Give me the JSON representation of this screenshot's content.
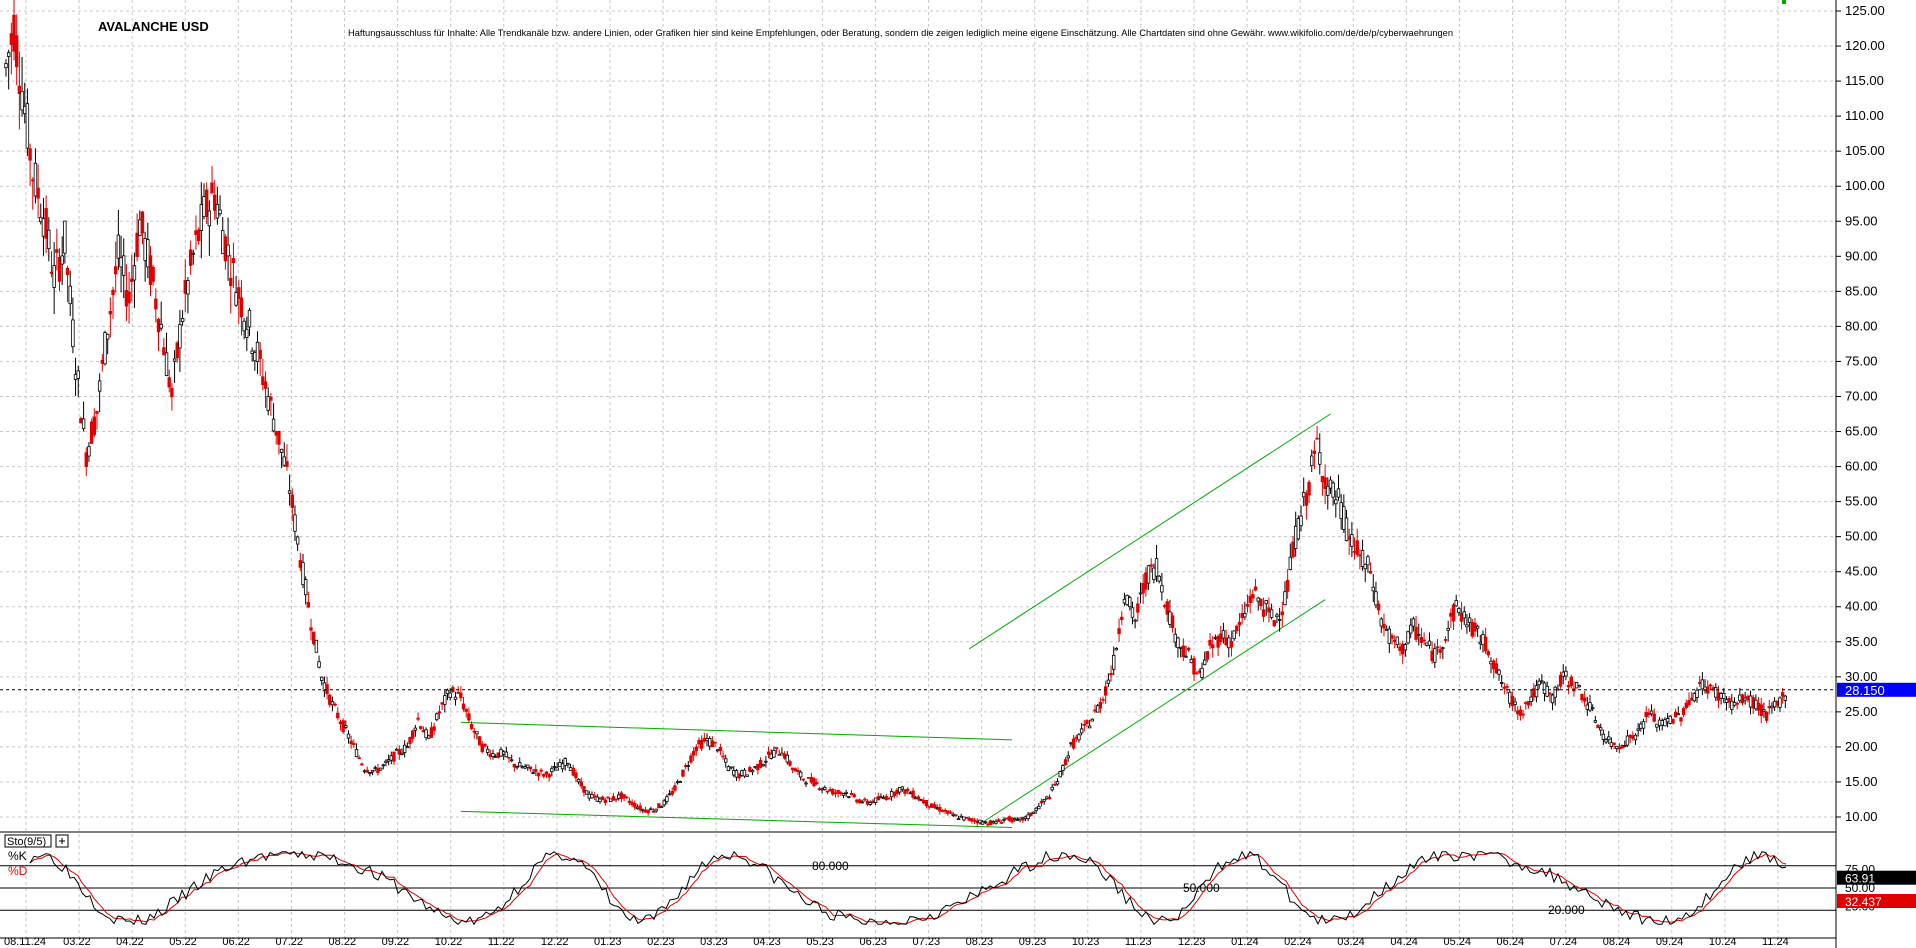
{
  "chart_data": {
    "type": "candlestick",
    "title": "AVALANCHE USD",
    "disclaimer": "Haftungsausschluss für Inhalte: Alle Trendkanäle bzw. andere Linien, oder Grafiken hier sind keine Empfehlungen, oder Beratung, sondern die zeigen lediglich meine eigene Einschätzung. Alle Chartdaten sind ohne Gewähr.  www.wikifolio.com/de/de/p/cyberwaehrungen",
    "y_ticks": [
      "125.00",
      "120.00",
      "115.00",
      "110.00",
      "105.00",
      "100.00",
      "95.00",
      "90.00",
      "85.00",
      "80.00",
      "75.00",
      "70.00",
      "65.00",
      "60.00",
      "55.00",
      "50.00",
      "45.00",
      "40.00",
      "35.00",
      "30.00",
      "25.00",
      "20.00",
      "15.00",
      "10.00"
    ],
    "ylim": [
      7,
      126
    ],
    "last_price": 28.15,
    "last_price_label": "28.150",
    "x_labels": [
      "08.11.24",
      "03.22",
      "04.22",
      "05.22",
      "06.22",
      "07.22",
      "08.22",
      "09.22",
      "10.22",
      "11.22",
      "12.22",
      "01.23",
      "02.23",
      "03.23",
      "04.23",
      "05.23",
      "06.23",
      "07.23",
      "08.23",
      "09.23",
      "10.23",
      "11.23",
      "12.23",
      "01.24",
      "02.24",
      "03.24",
      "04.24",
      "05.24",
      "06.24",
      "07.24",
      "08.24",
      "09.24",
      "10.24",
      "11.24"
    ],
    "price_path": [
      [
        0,
        117
      ],
      [
        3,
        123
      ],
      [
        6,
        114
      ],
      [
        10,
        102
      ],
      [
        14,
        96
      ],
      [
        18,
        87
      ],
      [
        22,
        92
      ],
      [
        26,
        75
      ],
      [
        30,
        62
      ],
      [
        34,
        68
      ],
      [
        38,
        80
      ],
      [
        42,
        90
      ],
      [
        46,
        84
      ],
      [
        50,
        95
      ],
      [
        54,
        88
      ],
      [
        58,
        80
      ],
      [
        62,
        70
      ],
      [
        66,
        82
      ],
      [
        70,
        90
      ],
      [
        74,
        96
      ],
      [
        78,
        99
      ],
      [
        82,
        92
      ],
      [
        86,
        86
      ],
      [
        90,
        81
      ],
      [
        94,
        76
      ],
      [
        98,
        70
      ],
      [
        102,
        64
      ],
      [
        106,
        57
      ],
      [
        110,
        47
      ],
      [
        114,
        38
      ],
      [
        118,
        30
      ],
      [
        122,
        26
      ],
      [
        126,
        23
      ],
      [
        130,
        20
      ],
      [
        134,
        17
      ],
      [
        138,
        16.5
      ],
      [
        142,
        17.5
      ],
      [
        146,
        19
      ],
      [
        150,
        20
      ],
      [
        154,
        24
      ],
      [
        158,
        21
      ],
      [
        162,
        25
      ],
      [
        166,
        28
      ],
      [
        170,
        27
      ],
      [
        174,
        23
      ],
      [
        178,
        20
      ],
      [
        182,
        19
      ],
      [
        186,
        19
      ],
      [
        190,
        17.5
      ],
      [
        194,
        17
      ],
      [
        198,
        16.5
      ],
      [
        202,
        16
      ],
      [
        206,
        17
      ],
      [
        210,
        18
      ],
      [
        214,
        15
      ],
      [
        218,
        13
      ],
      [
        222,
        12.5
      ],
      [
        226,
        12.5
      ],
      [
        230,
        13
      ],
      [
        234,
        12
      ],
      [
        238,
        11
      ],
      [
        242,
        11
      ],
      [
        246,
        12
      ],
      [
        250,
        14
      ],
      [
        254,
        17
      ],
      [
        258,
        20
      ],
      [
        262,
        21
      ],
      [
        266,
        20
      ],
      [
        270,
        17
      ],
      [
        274,
        16
      ],
      [
        278,
        16.5
      ],
      [
        282,
        17.5
      ],
      [
        286,
        19
      ],
      [
        290,
        19.5
      ],
      [
        294,
        17
      ],
      [
        298,
        15.5
      ],
      [
        302,
        15
      ],
      [
        306,
        14
      ],
      [
        310,
        13.5
      ],
      [
        314,
        13.5
      ],
      [
        318,
        12.5
      ],
      [
        322,
        12
      ],
      [
        326,
        12.5
      ],
      [
        330,
        13
      ],
      [
        334,
        14
      ],
      [
        338,
        13.5
      ],
      [
        342,
        12.5
      ],
      [
        346,
        11.5
      ],
      [
        350,
        11
      ],
      [
        354,
        10.2
      ],
      [
        358,
        9.8
      ],
      [
        362,
        9.5
      ],
      [
        366,
        9.2
      ],
      [
        370,
        9.2
      ],
      [
        374,
        9.8
      ],
      [
        378,
        9.4
      ],
      [
        382,
        10
      ],
      [
        386,
        11.5
      ],
      [
        390,
        13
      ],
      [
        394,
        16
      ],
      [
        398,
        20
      ],
      [
        402,
        22
      ],
      [
        406,
        24
      ],
      [
        410,
        27
      ],
      [
        414,
        32
      ],
      [
        418,
        42
      ],
      [
        422,
        38
      ],
      [
        426,
        44
      ],
      [
        430,
        46
      ],
      [
        434,
        40
      ],
      [
        438,
        35
      ],
      [
        442,
        33
      ],
      [
        446,
        30
      ],
      [
        450,
        34
      ],
      [
        454,
        36
      ],
      [
        458,
        35
      ],
      [
        462,
        38
      ],
      [
        466,
        42
      ],
      [
        470,
        40
      ],
      [
        474,
        38
      ],
      [
        478,
        41
      ],
      [
        482,
        50
      ],
      [
        486,
        56
      ],
      [
        490,
        63
      ],
      [
        494,
        57
      ],
      [
        498,
        55
      ],
      [
        502,
        50
      ],
      [
        506,
        47
      ],
      [
        510,
        45
      ],
      [
        514,
        38
      ],
      [
        518,
        35
      ],
      [
        522,
        34
      ],
      [
        526,
        37
      ],
      [
        530,
        35
      ],
      [
        534,
        33
      ],
      [
        538,
        36
      ],
      [
        542,
        40
      ],
      [
        546,
        38
      ],
      [
        550,
        36
      ],
      [
        554,
        34
      ],
      [
        558,
        30
      ],
      [
        562,
        27
      ],
      [
        566,
        25
      ],
      [
        570,
        27
      ],
      [
        574,
        29
      ],
      [
        578,
        27
      ],
      [
        582,
        30
      ],
      [
        586,
        29
      ],
      [
        590,
        27
      ],
      [
        594,
        24
      ],
      [
        598,
        21
      ],
      [
        602,
        20
      ],
      [
        606,
        21
      ],
      [
        610,
        22
      ],
      [
        614,
        25
      ],
      [
        618,
        23
      ],
      [
        622,
        24
      ],
      [
        626,
        24.5
      ],
      [
        630,
        27
      ],
      [
        634,
        29
      ],
      [
        638,
        28
      ],
      [
        642,
        27
      ],
      [
        646,
        26
      ],
      [
        650,
        27
      ],
      [
        654,
        26
      ],
      [
        658,
        24.5
      ],
      [
        662,
        26
      ],
      [
        666,
        28.15
      ]
    ],
    "trendlines": [
      {
        "name": "upper-flag",
        "from": [
          170,
          23.5
        ],
        "to": [
          376,
          21
        ]
      },
      {
        "name": "lower-flag",
        "from": [
          170,
          10.8
        ],
        "to": [
          376,
          8.5
        ]
      },
      {
        "name": "channel-upper",
        "from": [
          360,
          34
        ],
        "to": [
          495,
          67.5
        ]
      },
      {
        "name": "channel-lower",
        "from": [
          364,
          9
        ],
        "to": [
          493,
          41
        ]
      }
    ],
    "oscillator": {
      "label": "Sto(9/5)",
      "k_label": "%K",
      "d_label": "%D",
      "levels": [
        80,
        50,
        20
      ],
      "level_labels": [
        "80.000",
        "50.000",
        "20.000"
      ],
      "k_value": 63.91,
      "k_value_label": "63.91",
      "d_value": 32.437,
      "d_value_label": "32.437",
      "axis_ticks": [
        "75.00",
        "50.00",
        "25.00"
      ]
    },
    "colors": {
      "up": "#000000",
      "down": "#e00000",
      "trendline": "#00aa00",
      "last_price_bg": "#0000ff",
      "k_bg": "#000000",
      "d_bg": "#e00000"
    }
  }
}
